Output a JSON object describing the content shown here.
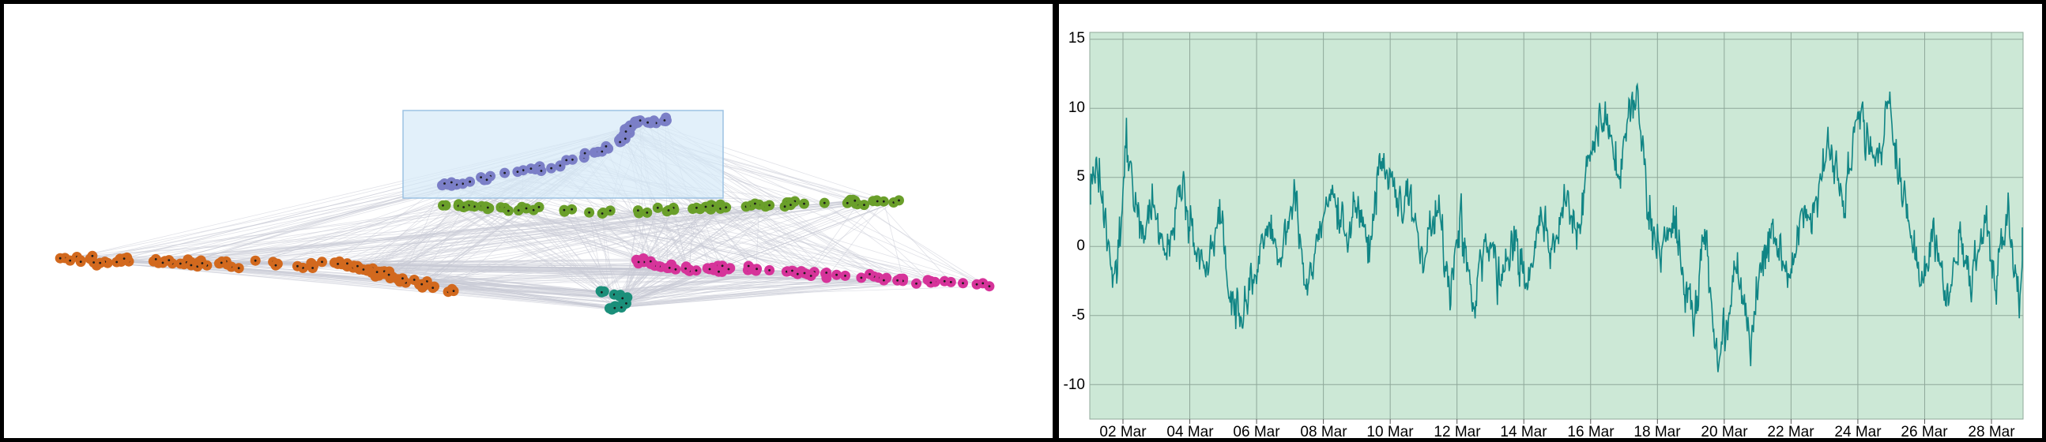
{
  "graph_panel": {
    "clusters": [
      {
        "name": "blue",
        "color": "#7b7fc7"
      },
      {
        "name": "green",
        "color": "#6a9f2a"
      },
      {
        "name": "orange",
        "color": "#d2691e"
      },
      {
        "name": "magenta",
        "color": "#d6349a"
      },
      {
        "name": "teal",
        "color": "#1b8f7a"
      }
    ],
    "edge_color": "#c9cbd6",
    "selection_fill": "#d6e9f8"
  },
  "chart_data": {
    "type": "line",
    "series": [
      {
        "color": "#108585"
      }
    ],
    "x_tick_labels": [
      "02 Mar",
      "04 Mar",
      "06 Mar",
      "08 Mar",
      "10 Mar",
      "12 Mar",
      "14 Mar",
      "16 Mar",
      "18 Mar",
      "20 Mar",
      "22 Mar",
      "24 Mar",
      "26 Mar",
      "28 Mar"
    ],
    "y_tick_labels": [
      "15",
      "10",
      "5",
      "0",
      "-5",
      "-10"
    ],
    "yticks": [
      15,
      10,
      5,
      0,
      -5,
      -10
    ],
    "ylim": [
      -12.5,
      15.5
    ],
    "xlim_days": [
      1,
      29
    ],
    "grid": true,
    "plot_background": "#cce8d6",
    "grid_color": "#8fa89a",
    "anchors": [
      [
        1.0,
        4
      ],
      [
        1.2,
        6
      ],
      [
        1.5,
        1
      ],
      [
        1.8,
        -3
      ],
      [
        2.1,
        8
      ],
      [
        2.5,
        1
      ],
      [
        2.9,
        3
      ],
      [
        3.3,
        -1
      ],
      [
        3.7,
        5
      ],
      [
        4.1,
        1
      ],
      [
        4.5,
        -2
      ],
      [
        4.9,
        3
      ],
      [
        5.2,
        -4
      ],
      [
        5.6,
        -5
      ],
      [
        6.0,
        -2
      ],
      [
        6.3,
        2
      ],
      [
        6.7,
        -1
      ],
      [
        7.1,
        3
      ],
      [
        7.5,
        -3
      ],
      [
        7.9,
        1
      ],
      [
        8.3,
        4
      ],
      [
        8.7,
        1
      ],
      [
        9.1,
        3
      ],
      [
        9.4,
        0
      ],
      [
        9.7,
        7
      ],
      [
        10.0,
        5
      ],
      [
        10.3,
        3
      ],
      [
        10.6,
        4
      ],
      [
        11.0,
        -1
      ],
      [
        11.4,
        3
      ],
      [
        11.8,
        -3
      ],
      [
        12.1,
        2
      ],
      [
        12.5,
        -4
      ],
      [
        12.9,
        1
      ],
      [
        13.3,
        -3
      ],
      [
        13.7,
        1
      ],
      [
        14.1,
        -3
      ],
      [
        14.5,
        2
      ],
      [
        14.8,
        -1
      ],
      [
        15.2,
        3
      ],
      [
        15.6,
        1
      ],
      [
        16.0,
        7
      ],
      [
        16.4,
        9
      ],
      [
        16.8,
        5
      ],
      [
        17.1,
        9
      ],
      [
        17.4,
        11
      ],
      [
        17.7,
        3
      ],
      [
        18.1,
        0
      ],
      [
        18.5,
        2
      ],
      [
        18.8,
        -2
      ],
      [
        19.1,
        -5
      ],
      [
        19.4,
        1
      ],
      [
        19.8,
        -9
      ],
      [
        20.1,
        -5
      ],
      [
        20.4,
        -1
      ],
      [
        20.8,
        -7
      ],
      [
        21.1,
        -1
      ],
      [
        21.5,
        1
      ],
      [
        21.9,
        -2
      ],
      [
        22.3,
        3
      ],
      [
        22.6,
        2
      ],
      [
        23.0,
        6
      ],
      [
        23.3,
        7
      ],
      [
        23.6,
        3
      ],
      [
        24.0,
        10
      ],
      [
        24.3,
        8
      ],
      [
        24.6,
        6
      ],
      [
        24.9,
        11
      ],
      [
        25.2,
        5
      ],
      [
        25.5,
        2
      ],
      [
        25.9,
        -2
      ],
      [
        26.3,
        1
      ],
      [
        26.7,
        -4
      ],
      [
        27.0,
        1
      ],
      [
        27.4,
        -3
      ],
      [
        27.8,
        2
      ],
      [
        28.1,
        -3
      ],
      [
        28.5,
        3
      ],
      [
        28.8,
        -4
      ],
      [
        29.0,
        0
      ]
    ]
  }
}
